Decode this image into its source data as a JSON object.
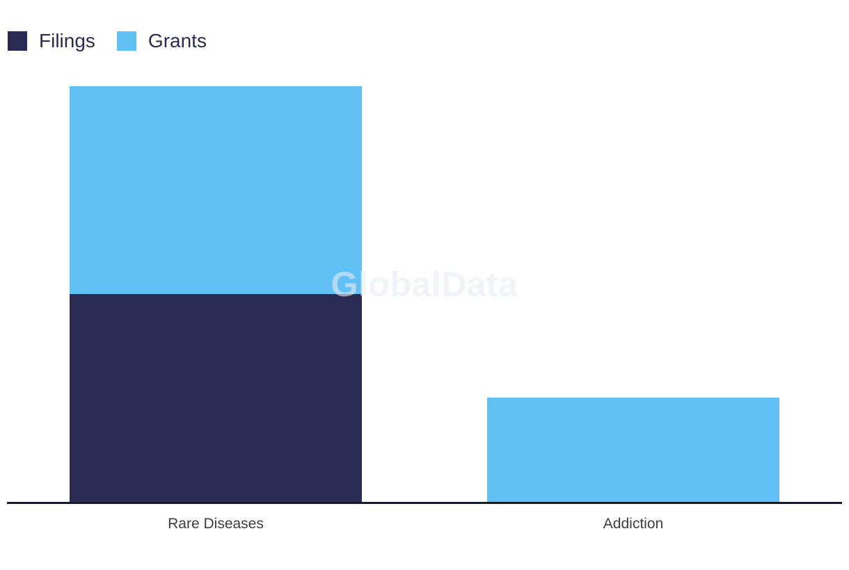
{
  "watermark": {
    "text": "GlobalData"
  },
  "colors": {
    "background": "#ffffff",
    "axis_line": "#171a2b",
    "category_label_text": "#3d3d3d",
    "legend_text": "#2b2b52",
    "filings": "#2a2a52",
    "grants": "#61c1f6",
    "watermark_text": "rgba(233,235,241,0.6)"
  },
  "chart_data": {
    "type": "bar",
    "stacked": true,
    "title": "",
    "xlabel": "",
    "ylabel": "",
    "categories": [
      "Rare Diseases",
      "Addiction"
    ],
    "series": [
      {
        "name": "Filings",
        "color": "#2a2a52",
        "values": [
          2,
          0
        ]
      },
      {
        "name": "Grants",
        "color": "#61c1f6",
        "values": [
          2,
          1
        ]
      }
    ],
    "ylim": [
      0,
      4
    ],
    "y_axis_visible": false,
    "x_axis_tick_labels_visible": true,
    "grid": false,
    "data_labels": false,
    "legend_position": "top-left",
    "annotations": [
      "GlobalData"
    ]
  }
}
